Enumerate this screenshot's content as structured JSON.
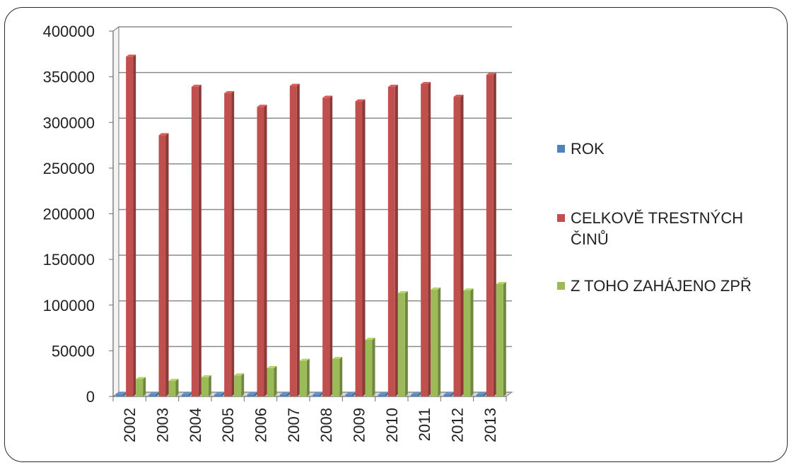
{
  "chart_data": {
    "type": "bar",
    "title": "",
    "xlabel": "",
    "ylabel": "",
    "ylim": [
      0,
      400000
    ],
    "yticks": [
      0,
      50000,
      100000,
      150000,
      200000,
      250000,
      300000,
      350000,
      400000
    ],
    "grid": true,
    "legend_position": "right",
    "categories": [
      "2002",
      "2003",
      "2004",
      "2005",
      "2006",
      "2007",
      "2008",
      "2009",
      "2010",
      "2011",
      "2012",
      "2013"
    ],
    "series": [
      {
        "name": "ROK",
        "color": "#4f81bd",
        "values": [
          2002,
          2003,
          2004,
          2005,
          2006,
          2007,
          2008,
          2009,
          2010,
          2011,
          2012,
          2013
        ]
      },
      {
        "name": "CELKOVĚ TRESTNÝCH ČINŮ",
        "color": "#c0504d",
        "values": [
          372000,
          286000,
          339000,
          332000,
          317000,
          340000,
          327000,
          323000,
          339000,
          342000,
          328000,
          352000
        ]
      },
      {
        "name": "Z TOHO ZAHÁJENO ZPŘ",
        "color": "#9bbb59",
        "values": [
          19000,
          17000,
          21000,
          23000,
          31000,
          39000,
          41000,
          62000,
          113000,
          117000,
          116000,
          123000
        ]
      }
    ]
  }
}
